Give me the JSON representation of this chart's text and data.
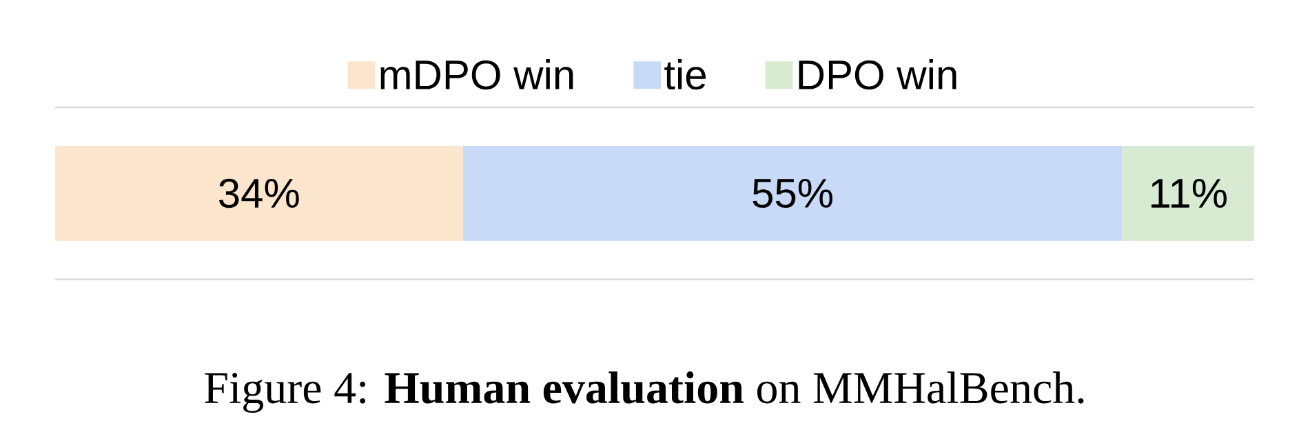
{
  "chart_data": {
    "type": "bar",
    "orientation": "horizontal",
    "stacked": true,
    "categories": [
      null
    ],
    "xlim": [
      0,
      100
    ],
    "tick_labels": false,
    "legend": "top",
    "series": [
      {
        "name": "mDPO win",
        "color": "#fce5cd",
        "values": [
          34
        ],
        "value_labels": [
          "34%"
        ]
      },
      {
        "name": "tie",
        "color": "#c9daf8",
        "values": [
          55
        ],
        "value_labels": [
          "55%"
        ]
      },
      {
        "name": "DPO win",
        "color": "#d9ead3",
        "values": [
          11
        ],
        "value_labels": [
          "11%"
        ]
      }
    ],
    "annotations": [
      "Figure 4: **Human evaluation** on MMHalBench."
    ]
  }
}
